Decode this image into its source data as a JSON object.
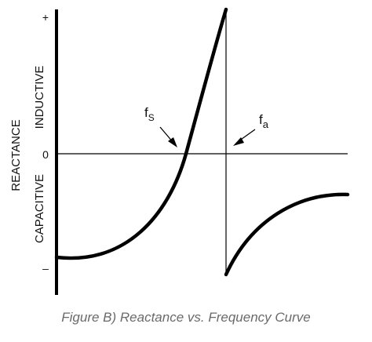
{
  "diagram": {
    "y_axis_title": "REACTANCE",
    "upper_region_label": "INDUCTIVE",
    "lower_region_label": "CAPACITIVE",
    "tick_plus": "+",
    "tick_zero": "0",
    "tick_minus": "–",
    "fs_label": {
      "base": "f",
      "subscript": "S"
    },
    "fa_label": {
      "base": "f",
      "subscript": "a"
    },
    "caption": "Figure B) Reactance vs. Frequency Curve"
  }
}
